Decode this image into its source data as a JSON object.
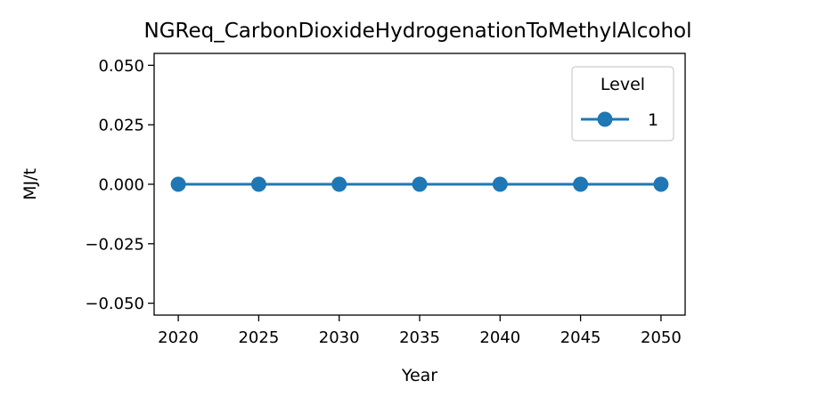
{
  "chart_data": {
    "type": "line",
    "title": "NGReq_CarbonDioxideHydrogenationToMethylAlcohol",
    "xlabel": "Year",
    "ylabel": "MJ/t",
    "x": [
      2020,
      2025,
      2030,
      2035,
      2040,
      2045,
      2050
    ],
    "series": [
      {
        "name": "1",
        "values": [
          0,
          0,
          0,
          0,
          0,
          0,
          0
        ],
        "color": "#1f77b4",
        "marker": "circle"
      }
    ],
    "xlim": [
      2018.5,
      2051.5
    ],
    "ylim": [
      -0.055,
      0.055
    ],
    "x_ticks": [
      2020,
      2025,
      2030,
      2035,
      2040,
      2045,
      2050
    ],
    "x_tick_labels": [
      "2020",
      "2025",
      "2030",
      "2035",
      "2040",
      "2045",
      "2050"
    ],
    "y_ticks": [
      0.05,
      0.025,
      0,
      -0.025,
      -0.05
    ],
    "y_tick_labels": [
      "0.050",
      "0.025",
      "0.000",
      "−0.025",
      "−0.050"
    ],
    "grid": false,
    "legend": {
      "title": "Level",
      "placement": "upper-right"
    }
  }
}
